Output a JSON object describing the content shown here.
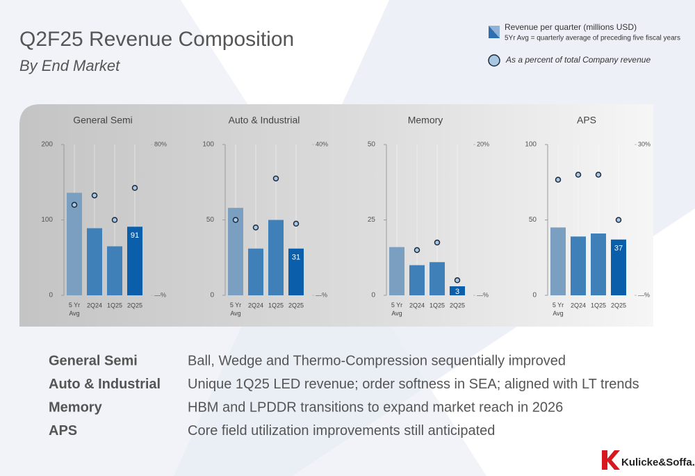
{
  "title": "Q2F25 Revenue Composition",
  "subtitle": "By End Market",
  "legend": {
    "bars": "Revenue per quarter (millions USD)",
    "bars_note": "5Yr Avg = quarterly average of preceding five fiscal years",
    "dots": "As a percent of total Company revenue"
  },
  "chart_data": [
    {
      "type": "bar",
      "title": "General Semi",
      "categories": [
        "5 Yr Avg",
        "2Q24",
        "1Q25",
        "2Q25"
      ],
      "series": [
        {
          "values": [
            136,
            89,
            65,
            91
          ],
          "value_labels": [
            null,
            null,
            null,
            "91"
          ],
          "colors": [
            "#7b9fc0",
            "#3f80b8",
            "#3f80b8",
            "#0b5ea9"
          ]
        },
        {
          "axis": "y2",
          "marker": "circle",
          "color": "#a9c6e3",
          "values": [
            48,
            53,
            40,
            57
          ]
        }
      ],
      "ylim": [
        0,
        200
      ],
      "yticks": [
        0,
        100,
        200
      ],
      "y2lim": [
        0,
        80
      ],
      "y2ticks": [
        {
          "value": 0,
          "label": "—%"
        },
        {
          "value": 80,
          "label": "80%"
        }
      ]
    },
    {
      "type": "bar",
      "title": "Auto & Industrial",
      "categories": [
        "5 Yr Avg",
        "2Q24",
        "1Q25",
        "2Q25"
      ],
      "series": [
        {
          "values": [
            58,
            31,
            50,
            31
          ],
          "value_labels": [
            null,
            null,
            null,
            "31"
          ],
          "colors": [
            "#7b9fc0",
            "#3f80b8",
            "#3f80b8",
            "#0b5ea9"
          ]
        },
        {
          "axis": "y2",
          "marker": "circle",
          "color": "#a9c6e3",
          "values": [
            20,
            18,
            31,
            19
          ]
        }
      ],
      "ylim": [
        0,
        100
      ],
      "yticks": [
        0,
        50,
        100
      ],
      "y2lim": [
        0,
        40
      ],
      "y2ticks": [
        {
          "value": 0,
          "label": "—%"
        },
        {
          "value": 40,
          "label": "40%"
        }
      ]
    },
    {
      "type": "bar",
      "title": "Memory",
      "categories": [
        "5 Yr Avg",
        "2Q24",
        "1Q25",
        "2Q25"
      ],
      "series": [
        {
          "values": [
            16,
            10,
            11,
            3
          ],
          "value_labels": [
            null,
            null,
            null,
            "3"
          ],
          "colors": [
            "#7b9fc0",
            "#3f80b8",
            "#3f80b8",
            "#0b5ea9"
          ]
        },
        {
          "axis": "y2",
          "marker": "circle",
          "color": "#a9c6e3",
          "values": [
            null,
            6,
            7,
            2
          ]
        }
      ],
      "ylim": [
        0,
        50
      ],
      "yticks": [
        0,
        25,
        50
      ],
      "y2lim": [
        0,
        20
      ],
      "y2ticks": [
        {
          "value": 0,
          "label": "—%"
        },
        {
          "value": 20,
          "label": "20%"
        }
      ]
    },
    {
      "type": "bar",
      "title": "APS",
      "categories": [
        "5 Yr Avg",
        "2Q24",
        "1Q25",
        "2Q25"
      ],
      "series": [
        {
          "values": [
            45,
            39,
            41,
            37
          ],
          "value_labels": [
            null,
            null,
            null,
            "37"
          ],
          "colors": [
            "#7b9fc0",
            "#3f80b8",
            "#3f80b8",
            "#0b5ea9"
          ]
        },
        {
          "axis": "y2",
          "marker": "circle",
          "color": "#a9c6e3",
          "values": [
            23,
            24,
            24,
            15
          ]
        }
      ],
      "ylim": [
        0,
        100
      ],
      "yticks": [
        0,
        50,
        100
      ],
      "y2lim": [
        0,
        30
      ],
      "y2ticks": [
        {
          "value": 0,
          "label": "—%"
        },
        {
          "value": 30,
          "label": "30%"
        }
      ]
    }
  ],
  "commentary": [
    {
      "market": "General Semi",
      "text": "Ball, Wedge and Thermo-Compression sequentially improved"
    },
    {
      "market": "Auto & Industrial",
      "text": "Unique 1Q25 LED revenue; order softness in SEA; aligned with LT trends"
    },
    {
      "market": "Memory",
      "text": "HBM and LPDDR transitions to expand market reach in 2026"
    },
    {
      "market": "APS",
      "text": "Core field utilization improvements still anticipated"
    }
  ],
  "logo": "Kulicke&Soffa."
}
